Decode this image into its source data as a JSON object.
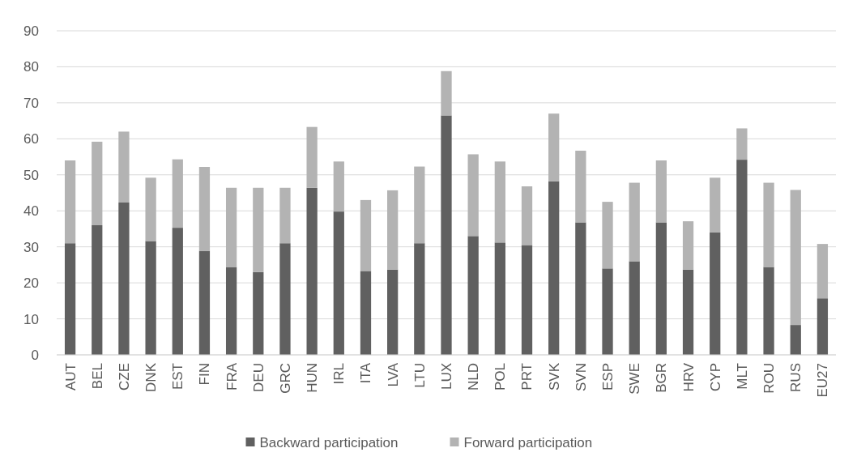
{
  "chart_data": {
    "type": "bar",
    "stacked": true,
    "categories": [
      "AUT",
      "BEL",
      "CZE",
      "DNK",
      "EST",
      "FIN",
      "FRA",
      "DEU",
      "GRC",
      "HUN",
      "IRL",
      "ITA",
      "LVA",
      "LTU",
      "LUX",
      "NLD",
      "POL",
      "PRT",
      "SVK",
      "SVN",
      "ESP",
      "SWE",
      "BGR",
      "HRV",
      "CYP",
      "MLT",
      "ROU",
      "RUS",
      "EU27"
    ],
    "series": [
      {
        "name": "Backward participation",
        "color": "#606060",
        "values": [
          31,
          36,
          42.3,
          31.6,
          35.3,
          28.9,
          24.4,
          23,
          31,
          46.4,
          39.8,
          23.3,
          23.7,
          31,
          66.5,
          33,
          31.2,
          30.5,
          48.2,
          36.8,
          24,
          26,
          36.8,
          23.7,
          34,
          54.2,
          24.4,
          8.3,
          15.7
        ]
      },
      {
        "name": "Forward participation",
        "color": "#b3b3b3",
        "values": [
          23,
          23.2,
          19.7,
          17.6,
          19,
          23.3,
          22,
          23.4,
          15.4,
          16.9,
          13.9,
          19.7,
          22,
          21.3,
          12.3,
          22.7,
          22.5,
          16.3,
          18.8,
          19.9,
          18.5,
          21.8,
          17.2,
          13.4,
          15.2,
          8.7,
          23.4,
          37.5,
          15.1
        ]
      }
    ],
    "ylim": [
      0,
      90
    ],
    "yticks": [
      0,
      10,
      20,
      30,
      40,
      50,
      60,
      70,
      80,
      90
    ],
    "grid": "y",
    "legend": "bottom"
  }
}
